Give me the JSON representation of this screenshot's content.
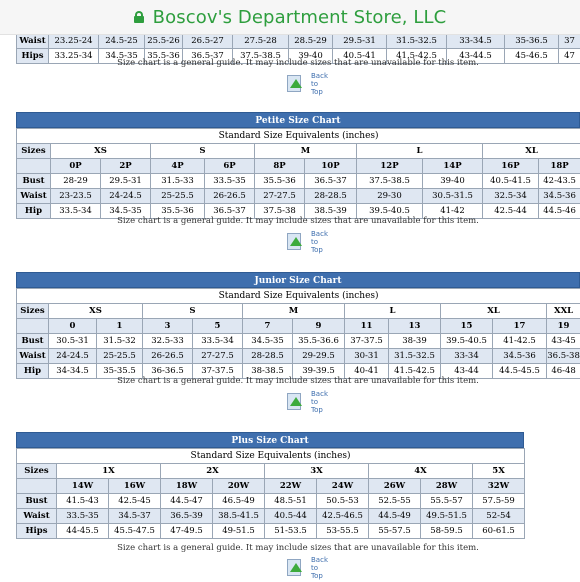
{
  "browser": {
    "url": "Boscov's Department Store, LLC"
  },
  "note": "Size chart is a general guide. It may include sizes that are unavailable for this item.",
  "back_to_top": [
    "Back to",
    "Top"
  ],
  "missy": {
    "rows": [
      {
        "label": "Waist",
        "values": [
          "23.25-24",
          "24.5-25",
          "25.5-26",
          "26.5-27",
          "27.5-28",
          "28.5-29",
          "29.5-31",
          "31.5-32.5",
          "33-34.5",
          "35-36.5",
          "37"
        ]
      },
      {
        "label": "Hips",
        "values": [
          "33.25-34",
          "34.5-35",
          "35.5-36",
          "36.5-37",
          "37.5-38.5",
          "39-40",
          "40.5-41",
          "41.5-42.5",
          "43-44.5",
          "45-46.5",
          "47"
        ]
      }
    ]
  },
  "petite": {
    "title": "Petite Size Chart",
    "equiv": "Standard Size Equivalents (inches)",
    "sizes_label": "Sizes",
    "groups": [
      "XS",
      "S",
      "M",
      "L",
      "XL"
    ],
    "subs": [
      "0P",
      "2P",
      "4P",
      "6P",
      "8P",
      "10P",
      "12P",
      "14P",
      "16P",
      "18P"
    ],
    "rows": [
      {
        "label": "Bust",
        "values": [
          "28-29",
          "29.5-31",
          "31.5-33",
          "33.5-35",
          "35.5-36",
          "36.5-37",
          "37.5-38.5",
          "39-40",
          "40.5-41.5",
          "42-43.5"
        ]
      },
      {
        "label": "Waist",
        "values": [
          "23-23.5",
          "24-24.5",
          "25-25.5",
          "26-26.5",
          "27-27.5",
          "28-28.5",
          "29-30",
          "30.5-31.5",
          "32.5-34",
          "34.5-36"
        ]
      },
      {
        "label": "Hip",
        "values": [
          "33.5-34",
          "34.5-35",
          "35.5-36",
          "36.5-37",
          "37.5-38",
          "38.5-39",
          "39.5-40.5",
          "41-42",
          "42.5-44",
          "44.5-46"
        ]
      }
    ]
  },
  "junior": {
    "title": "Junior Size Chart",
    "equiv": "Standard Size Equivalents (inches)",
    "sizes_label": "Sizes",
    "groups": [
      "XS",
      "S",
      "M",
      "L",
      "XL",
      "XXL"
    ],
    "subs": [
      "0",
      "1",
      "3",
      "5",
      "7",
      "9",
      "11",
      "13",
      "15",
      "17",
      "19"
    ],
    "rows": [
      {
        "label": "Bust",
        "values": [
          "30.5-31",
          "31.5-32",
          "32.5-33",
          "33.5-34",
          "34.5-35",
          "35.5-36.6",
          "37-37.5",
          "38-39",
          "39.5-40.5",
          "41-42.5",
          "43-45"
        ]
      },
      {
        "label": "Waist",
        "values": [
          "24-24.5",
          "25-25.5",
          "26-26.5",
          "27-27.5",
          "28-28.5",
          "29-29.5",
          "30-31",
          "31.5-32.5",
          "33-34",
          "34.5-36",
          "36.5-38"
        ]
      },
      {
        "label": "Hip",
        "values": [
          "34-34.5",
          "35-35.5",
          "36-36.5",
          "37-37.5",
          "38-38.5",
          "39-39.5",
          "40-41",
          "41.5-42.5",
          "43-44",
          "44.5-45.5",
          "46-48"
        ]
      }
    ]
  },
  "plus": {
    "title": "Plus Size Chart",
    "equiv": "Standard Size Equivalents (inches)",
    "sizes_label": "Sizes",
    "groups": [
      "1X",
      "2X",
      "3X",
      "4X",
      "5X"
    ],
    "subs": [
      "14W",
      "16W",
      "18W",
      "20W",
      "22W",
      "24W",
      "26W",
      "28W",
      "32W"
    ],
    "rows": [
      {
        "label": "Bust",
        "values": [
          "41.5-43",
          "42.5-45",
          "44.5-47",
          "46.5-49",
          "48.5-51",
          "50.5-53",
          "52.5-55",
          "55.5-57",
          "57.5-59"
        ]
      },
      {
        "label": "Waist",
        "values": [
          "33.5-35",
          "34.5-37",
          "36.5-39",
          "38.5-41.5",
          "40.5-44",
          "42.5-46.5",
          "44.5-49",
          "49.5-51.5",
          "52-54"
        ]
      },
      {
        "label": "Hips",
        "values": [
          "44-45.5",
          "45.5-47.5",
          "47-49.5",
          "49-51.5",
          "51-53.5",
          "53-55.5",
          "55-57.5",
          "58-59.5",
          "60-61.5"
        ]
      }
    ]
  }
}
